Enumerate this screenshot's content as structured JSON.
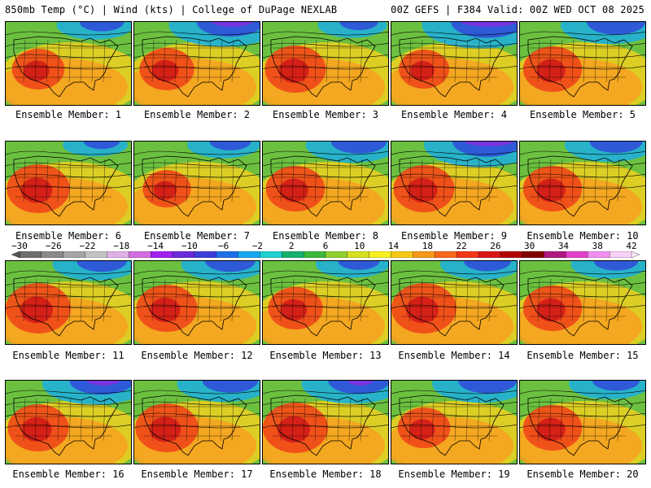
{
  "header": {
    "left": "850mb Temp (°C) | Wind (kts) | College of DuPage NEXLAB",
    "right": "00Z GEFS | F384 Valid: 00Z WED OCT 08 2025"
  },
  "colorbar": {
    "tick_labels": [
      "-30",
      "-26",
      "-22",
      "-18",
      "-14",
      "-10",
      "-6",
      "-2",
      "2",
      "6",
      "10",
      "14",
      "18",
      "22",
      "26",
      "30",
      "34",
      "38",
      "42"
    ],
    "colors": [
      "#6e6e6e",
      "#8a8a8a",
      "#a5a5a5",
      "#c3c3c3",
      "#e0b0e8",
      "#d070e0",
      "#a020f0",
      "#6a2bd8",
      "#3d3dd8",
      "#1f6fe8",
      "#18a8f0",
      "#20d0d0",
      "#18b070",
      "#3cb83c",
      "#90d030",
      "#d8e020",
      "#f8f020",
      "#f8c818",
      "#f89818",
      "#f86818",
      "#f03818",
      "#d81818",
      "#b00000",
      "#800000",
      "#b01880",
      "#e040c8",
      "#f090f0",
      "#f8d0f8"
    ],
    "min": -30,
    "max": 42
  },
  "panels": [
    {
      "caption": "Ensemble Member: 1",
      "warm": 0.55,
      "cold": 0.35
    },
    {
      "caption": "Ensemble Member: 2",
      "warm": 0.6,
      "cold": 0.75
    },
    {
      "caption": "Ensemble Member: 3",
      "warm": 0.75,
      "cold": 0.25
    },
    {
      "caption": "Ensemble Member: 4",
      "warm": 0.5,
      "cold": 0.85
    },
    {
      "caption": "Ensemble Member: 5",
      "warm": 0.7,
      "cold": 0.6
    },
    {
      "caption": "Ensemble Member: 6",
      "warm": 0.8,
      "cold": 0.2
    },
    {
      "caption": "Ensemble Member: 7",
      "warm": 0.45,
      "cold": 0.3
    },
    {
      "caption": "Ensemble Member: 8",
      "warm": 0.7,
      "cold": 0.55
    },
    {
      "caption": "Ensemble Member: 9",
      "warm": 0.75,
      "cold": 0.8
    },
    {
      "caption": "Ensemble Member: 10",
      "warm": 0.7,
      "cold": 0.5
    },
    {
      "caption": "Ensemble Member: 11",
      "warm": 0.85,
      "cold": 0.45
    },
    {
      "caption": "Ensemble Member: 12",
      "warm": 0.75,
      "cold": 0.45
    },
    {
      "caption": "Ensemble Member: 13",
      "warm": 0.6,
      "cold": 0.3
    },
    {
      "caption": "Ensemble Member: 14",
      "warm": 0.85,
      "cold": 0.4
    },
    {
      "caption": "Ensemble Member: 15",
      "warm": 0.7,
      "cold": 0.35
    },
    {
      "caption": "Ensemble Member: 16",
      "warm": 0.75,
      "cold": 0.7
    },
    {
      "caption": "Ensemble Member: 17",
      "warm": 0.8,
      "cold": 0.55
    },
    {
      "caption": "Ensemble Member: 18",
      "warm": 0.85,
      "cold": 0.65
    },
    {
      "caption": "Ensemble Member: 19",
      "warm": 0.55,
      "cold": 0.6
    },
    {
      "caption": "Ensemble Member: 20",
      "warm": 0.7,
      "cold": 0.4
    }
  ]
}
